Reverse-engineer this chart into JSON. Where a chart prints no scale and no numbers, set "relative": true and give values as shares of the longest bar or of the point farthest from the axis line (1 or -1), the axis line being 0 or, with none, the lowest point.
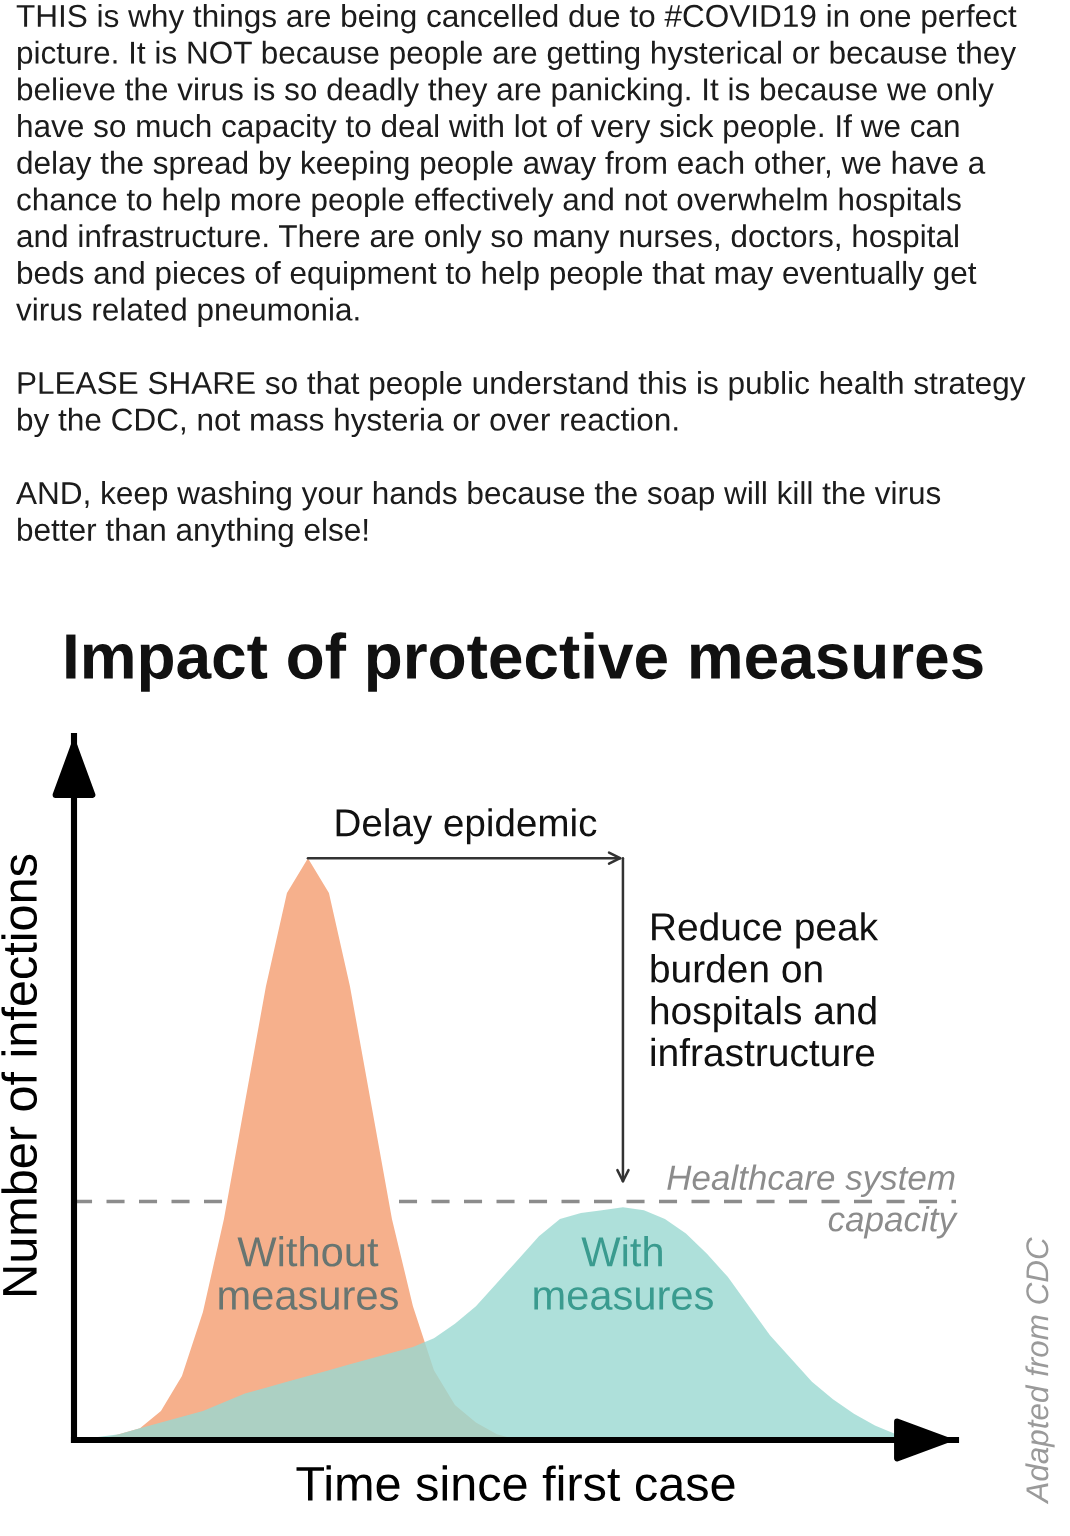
{
  "chart_data": {
    "type": "area",
    "title": "Impact of protective measures",
    "xlabel": "Time since first case",
    "ylabel": "Number of infections",
    "categories": [
      null,
      null,
      null,
      null,
      null,
      null,
      null,
      null,
      null,
      null,
      null,
      null,
      null,
      null,
      null,
      null,
      null,
      null,
      null,
      null,
      null,
      null,
      null,
      null,
      null,
      null,
      null,
      null,
      null,
      null,
      null,
      null,
      null,
      null,
      null,
      null,
      null,
      null,
      null,
      null
    ],
    "relative": true,
    "series": [
      {
        "name": "Without measures",
        "color": "#f6b08c",
        "values": [
          0,
          0,
          0.01,
          0.02,
          0.05,
          0.11,
          0.22,
          0.38,
          0.58,
          0.78,
          0.94,
          1,
          0.94,
          0.78,
          0.58,
          0.38,
          0.23,
          0.12,
          0.06,
          0.03,
          0.01,
          0,
          null,
          null,
          null,
          null,
          null,
          null,
          null,
          null,
          null,
          null,
          null,
          null,
          null,
          null,
          null,
          null,
          null,
          null
        ]
      },
      {
        "name": "With measures",
        "color": "#9ad8d1",
        "values": [
          0,
          0.005,
          0.01,
          0.02,
          0.03,
          0.04,
          0.05,
          0.065,
          0.08,
          0.09,
          0.1,
          0.11,
          0.12,
          0.13,
          0.14,
          0.15,
          0.16,
          0.175,
          0.2,
          0.23,
          0.27,
          0.31,
          0.35,
          0.38,
          0.39,
          0.395,
          0.4,
          0.395,
          0.38,
          0.355,
          0.32,
          0.28,
          0.23,
          0.18,
          0.14,
          0.1,
          0.07,
          0.045,
          0.025,
          0.01
        ]
      }
    ],
    "ref_lines": [
      {
        "axis": "y",
        "value": 0.41,
        "label": "Healthcare system\ncapacity",
        "color": "#8c8c8c",
        "line_style": "dashed"
      }
    ],
    "annotations": [
      "THIS is why things are being cancelled due to #COVID19 in one perfect\npicture. It is NOT because people are getting hysterical or because they\nbelieve the virus is so deadly they are panicking. It is because we only\nhave so much capacity to deal with lot of very sick people. If we can\ndelay the spread by keeping people away from each other, we have a\nchance to help more people effectively and not overwhelm hospitals\nand infrastructure. There are only so many nurses, doctors, hospital\nbeds and pieces of equipment to help people that may eventually get\nvirus related pneumonia.",
      "PLEASE SHARE so that people understand this is public health strategy\nby the CDC, not mass hysteria or over reaction.",
      "AND, keep washing your hands because the soap will kill the virus\nbetter than anything else!",
      "Delay epidemic",
      "Reduce peak\nburden on\nhospitals and\ninfrastructure",
      "Adapted from CDC"
    ]
  }
}
